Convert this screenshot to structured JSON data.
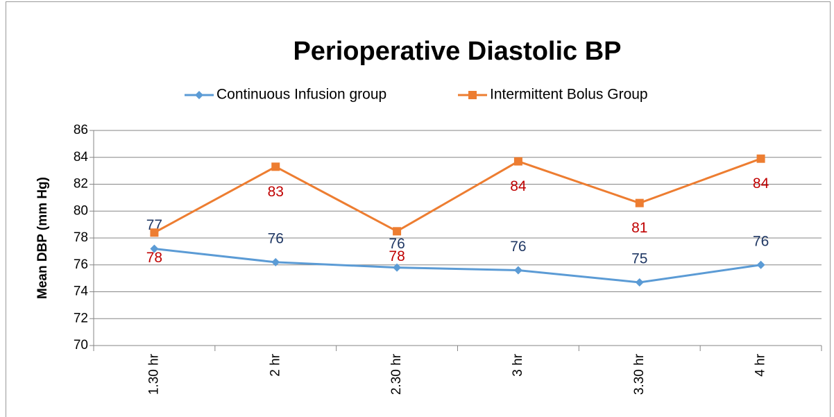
{
  "chart_data": {
    "type": "line",
    "title": "Perioperative Diastolic BP",
    "y_label": "Mean DBP (mm Hg)",
    "categories": [
      "1.30 hr",
      "2 hr",
      "2.30 hr",
      "3 hr",
      "3.30 hr",
      "4 hr"
    ],
    "series": [
      {
        "name": "Continuous Infusion group",
        "color": "#5b9bd5",
        "label_color": "#203864",
        "marker": "diamond",
        "values": [
          77.2,
          76.2,
          75.8,
          75.6,
          74.7,
          76.0
        ],
        "value_labels": [
          "77",
          "76",
          "76",
          "76",
          "75",
          "76"
        ]
      },
      {
        "name": "Intermittent Bolus Group",
        "color": "#ed7d31",
        "label_color": "#c00000",
        "marker": "square",
        "values": [
          78.4,
          83.3,
          78.5,
          83.7,
          80.6,
          83.9
        ],
        "value_labels": [
          "78",
          "83",
          "78",
          "84",
          "81",
          "84"
        ]
      }
    ],
    "ylim": [
      70,
      86
    ],
    "yticks": [
      70,
      72,
      74,
      76,
      78,
      80,
      82,
      84,
      86
    ],
    "grid": true,
    "legend": "top"
  }
}
